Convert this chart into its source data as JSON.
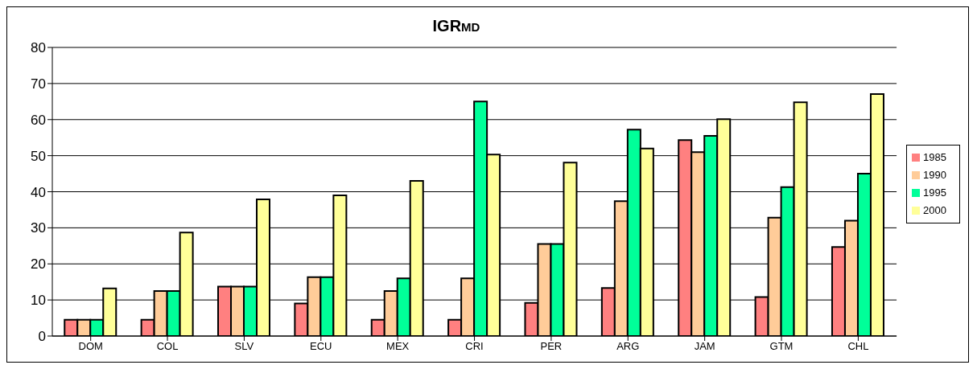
{
  "chart_data": {
    "type": "bar",
    "title": "IGR$_{MD}$",
    "categories": [
      "DOM",
      "COL",
      "SLV",
      "ECU",
      "MEX",
      "CRI",
      "PER",
      "ARG",
      "JAM",
      "GTM",
      "CHL"
    ],
    "series": [
      {
        "name": "1985",
        "color": "#ff8080",
        "values": [
          4.5,
          4.5,
          13.7,
          9,
          4.5,
          4.5,
          9.2,
          13.3,
          54.3,
          10.8,
          24.7
        ]
      },
      {
        "name": "1990",
        "color": "#ffcc99",
        "values": [
          4.5,
          12.5,
          13.7,
          16.3,
          12.5,
          16,
          25.5,
          37.4,
          51,
          32.8,
          32
        ]
      },
      {
        "name": "1995",
        "color": "#00ff99",
        "values": [
          4.5,
          12.5,
          13.7,
          16.3,
          16,
          65,
          25.5,
          57.2,
          55.5,
          41.3,
          45
        ]
      },
      {
        "name": "2000",
        "color": "#ffff99",
        "values": [
          13.2,
          28.7,
          37.9,
          39,
          43,
          50.3,
          48.1,
          52,
          60.1,
          64.8,
          67.1
        ]
      }
    ],
    "ylim": [
      0,
      80
    ],
    "yticks": [
      0,
      10,
      20,
      30,
      40,
      50,
      60,
      70,
      80
    ],
    "grid": "y",
    "legend": "right"
  }
}
